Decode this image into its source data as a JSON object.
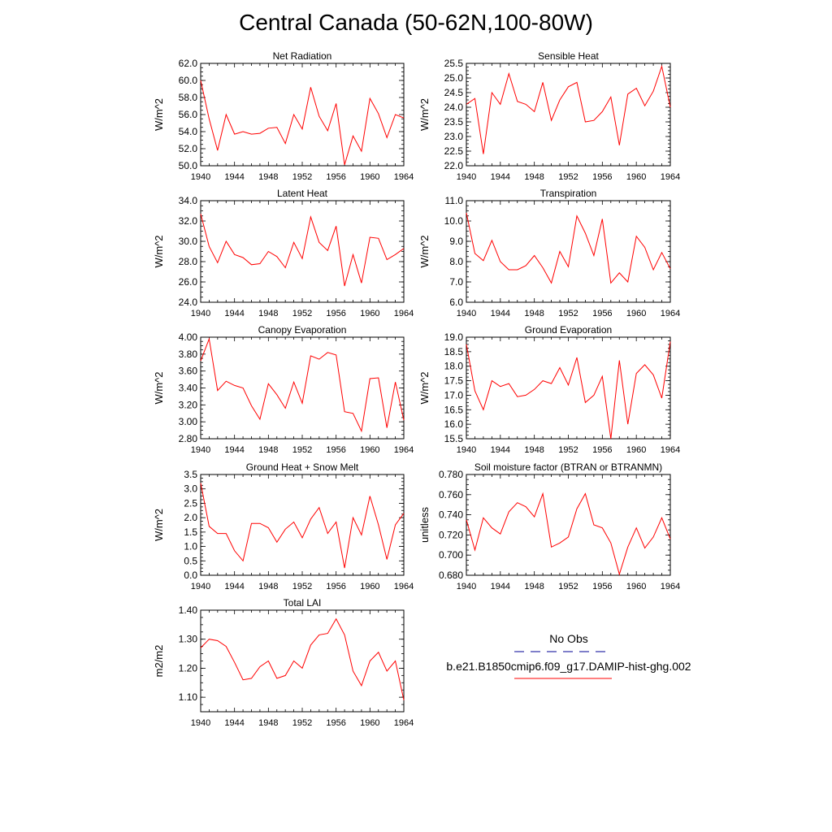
{
  "figure": {
    "title": "Central Canada (50-62N,100-80W)",
    "line_color": "#ff0000",
    "obs_color": "#3333aa"
  },
  "legend": {
    "obs_label": "No Obs",
    "model_label": "b.e21.B1850cmip6.f09_g17.DAMIP-hist-ghg.002"
  },
  "chart_data": [
    {
      "type": "line",
      "title": "Net Radiation",
      "ylabel": "W/m^2",
      "xlabel": "",
      "x": [
        1940,
        1941,
        1942,
        1943,
        1944,
        1945,
        1946,
        1947,
        1948,
        1949,
        1950,
        1951,
        1952,
        1953,
        1954,
        1955,
        1956,
        1957,
        1958,
        1959,
        1960,
        1961,
        1962,
        1963,
        1964
      ],
      "values": [
        60.0,
        55.5,
        51.8,
        56.0,
        53.7,
        54.0,
        53.7,
        53.8,
        54.4,
        54.5,
        52.6,
        56.0,
        54.3,
        59.2,
        55.8,
        54.1,
        57.3,
        50.1,
        53.5,
        51.7,
        57.9,
        56.1,
        53.3,
        56.0,
        55.6
      ],
      "ylim": [
        50.0,
        62.0
      ],
      "yticks": [
        "50.0",
        "52.0",
        "54.0",
        "56.0",
        "58.0",
        "60.0",
        "62.0"
      ],
      "xticks": [
        "1940",
        "1944",
        "1948",
        "1952",
        "1956",
        "1960",
        "1964"
      ]
    },
    {
      "type": "line",
      "title": "Sensible Heat",
      "ylabel": "W/m^2",
      "xlabel": "",
      "x": [
        1940,
        1941,
        1942,
        1943,
        1944,
        1945,
        1946,
        1947,
        1948,
        1949,
        1950,
        1951,
        1952,
        1953,
        1954,
        1955,
        1956,
        1957,
        1958,
        1959,
        1960,
        1961,
        1962,
        1963,
        1964
      ],
      "values": [
        24.1,
        24.3,
        22.4,
        24.5,
        24.1,
        25.15,
        24.2,
        24.1,
        23.85,
        24.85,
        23.55,
        24.25,
        24.7,
        24.85,
        23.5,
        23.55,
        23.85,
        24.35,
        22.7,
        24.45,
        24.65,
        24.05,
        24.55,
        25.4,
        24.0
      ],
      "ylim": [
        22.0,
        25.5
      ],
      "yticks": [
        "22.0",
        "22.5",
        "23.0",
        "23.5",
        "24.0",
        "24.5",
        "25.0",
        "25.5"
      ],
      "xticks": [
        "1940",
        "1944",
        "1948",
        "1952",
        "1956",
        "1960",
        "1964"
      ]
    },
    {
      "type": "line",
      "title": "Latent Heat",
      "ylabel": "W/m^2",
      "xlabel": "",
      "x": [
        1940,
        1941,
        1942,
        1943,
        1944,
        1945,
        1946,
        1947,
        1948,
        1949,
        1950,
        1951,
        1952,
        1953,
        1954,
        1955,
        1956,
        1957,
        1958,
        1959,
        1960,
        1961,
        1962,
        1963,
        1964
      ],
      "values": [
        32.7,
        29.5,
        27.9,
        30.0,
        28.7,
        28.4,
        27.7,
        27.8,
        29.0,
        28.5,
        27.4,
        29.9,
        28.3,
        32.4,
        29.9,
        29.1,
        31.5,
        25.6,
        28.7,
        25.9,
        30.4,
        30.3,
        28.2,
        28.7,
        29.3
      ],
      "ylim": [
        24.0,
        34.0
      ],
      "yticks": [
        "24.0",
        "26.0",
        "28.0",
        "30.0",
        "32.0",
        "34.0"
      ],
      "xticks": [
        "1940",
        "1944",
        "1948",
        "1952",
        "1956",
        "1960",
        "1964"
      ]
    },
    {
      "type": "line",
      "title": "Transpiration",
      "ylabel": "W/m^2",
      "xlabel": "",
      "x": [
        1940,
        1941,
        1942,
        1943,
        1944,
        1945,
        1946,
        1947,
        1948,
        1949,
        1950,
        1951,
        1952,
        1953,
        1954,
        1955,
        1956,
        1957,
        1958,
        1959,
        1960,
        1961,
        1962,
        1963,
        1964
      ],
      "values": [
        10.4,
        8.4,
        8.05,
        9.05,
        8.0,
        7.6,
        7.6,
        7.8,
        8.3,
        7.7,
        6.95,
        8.5,
        7.75,
        10.25,
        9.4,
        8.3,
        10.1,
        6.95,
        7.45,
        7.0,
        9.25,
        8.7,
        7.6,
        8.45,
        7.65
      ],
      "ylim": [
        6.0,
        11.0
      ],
      "yticks": [
        "6.0",
        "7.0",
        "8.0",
        "9.0",
        "10.0",
        "11.0"
      ],
      "xticks": [
        "1940",
        "1944",
        "1948",
        "1952",
        "1956",
        "1960",
        "1964"
      ]
    },
    {
      "type": "line",
      "title": "Canopy Evaporation",
      "ylabel": "W/m^2",
      "xlabel": "",
      "x": [
        1940,
        1941,
        1942,
        1943,
        1944,
        1945,
        1946,
        1947,
        1948,
        1949,
        1950,
        1951,
        1952,
        1953,
        1954,
        1955,
        1956,
        1957,
        1958,
        1959,
        1960,
        1961,
        1962,
        1963,
        1964
      ],
      "values": [
        3.72,
        3.98,
        3.37,
        3.48,
        3.43,
        3.4,
        3.19,
        3.03,
        3.45,
        3.32,
        3.16,
        3.47,
        3.22,
        3.78,
        3.74,
        3.82,
        3.79,
        3.12,
        3.1,
        2.89,
        3.51,
        3.52,
        2.93,
        3.47,
        3.02
      ],
      "ylim": [
        2.8,
        4.0
      ],
      "yticks": [
        "2.80",
        "3.00",
        "3.20",
        "3.40",
        "3.60",
        "3.80",
        "4.00"
      ],
      "xticks": [
        "1940",
        "1944",
        "1948",
        "1952",
        "1956",
        "1960",
        "1964"
      ]
    },
    {
      "type": "line",
      "title": "Ground Evaporation",
      "ylabel": "W/m^2",
      "xlabel": "",
      "x": [
        1940,
        1941,
        1942,
        1943,
        1944,
        1945,
        1946,
        1947,
        1948,
        1949,
        1950,
        1951,
        1952,
        1953,
        1954,
        1955,
        1956,
        1957,
        1958,
        1959,
        1960,
        1961,
        1962,
        1963,
        1964
      ],
      "values": [
        18.75,
        17.15,
        16.5,
        17.5,
        17.3,
        17.4,
        16.95,
        17.0,
        17.2,
        17.5,
        17.4,
        17.95,
        17.35,
        18.3,
        16.75,
        17.0,
        17.65,
        15.5,
        18.2,
        16.0,
        17.75,
        18.05,
        17.7,
        16.9,
        18.85
      ],
      "ylim": [
        15.5,
        19.0
      ],
      "yticks": [
        "15.5",
        "16.0",
        "16.5",
        "17.0",
        "17.5",
        "18.0",
        "18.5",
        "19.0"
      ],
      "xticks": [
        "1940",
        "1944",
        "1948",
        "1952",
        "1956",
        "1960",
        "1964"
      ]
    },
    {
      "type": "line",
      "title": "Ground Heat + Snow Melt",
      "ylabel": "W/m^2",
      "xlabel": "",
      "x": [
        1940,
        1941,
        1942,
        1943,
        1944,
        1945,
        1946,
        1947,
        1948,
        1949,
        1950,
        1951,
        1952,
        1953,
        1954,
        1955,
        1956,
        1957,
        1958,
        1959,
        1960,
        1961,
        1962,
        1963,
        1964
      ],
      "values": [
        3.2,
        1.7,
        1.45,
        1.45,
        0.85,
        0.5,
        1.8,
        1.8,
        1.65,
        1.15,
        1.6,
        1.85,
        1.3,
        1.95,
        2.35,
        1.45,
        1.85,
        0.25,
        2.0,
        1.4,
        2.75,
        1.75,
        0.55,
        1.75,
        2.15
      ],
      "ylim": [
        0.0,
        3.5
      ],
      "yticks": [
        "0.0",
        "0.5",
        "1.0",
        "1.5",
        "2.0",
        "2.5",
        "3.0",
        "3.5"
      ],
      "xticks": [
        "1940",
        "1944",
        "1948",
        "1952",
        "1956",
        "1960",
        "1964"
      ]
    },
    {
      "type": "line",
      "title": "Soil moisture factor (BTRAN or BTRANMN)",
      "ylabel": "unitless",
      "xlabel": "",
      "x": [
        1940,
        1941,
        1942,
        1943,
        1944,
        1945,
        1946,
        1947,
        1948,
        1949,
        1950,
        1951,
        1952,
        1953,
        1954,
        1955,
        1956,
        1957,
        1958,
        1959,
        1960,
        1961,
        1962,
        1963,
        1964
      ],
      "values": [
        0.735,
        0.705,
        0.737,
        0.727,
        0.721,
        0.743,
        0.752,
        0.748,
        0.738,
        0.761,
        0.708,
        0.712,
        0.718,
        0.746,
        0.761,
        0.73,
        0.727,
        0.712,
        0.681,
        0.708,
        0.727,
        0.707,
        0.718,
        0.737,
        0.716
      ],
      "ylim": [
        0.68,
        0.78
      ],
      "yticks": [
        "0.680",
        "0.700",
        "0.720",
        "0.740",
        "0.760",
        "0.780"
      ],
      "xticks": [
        "1940",
        "1944",
        "1948",
        "1952",
        "1956",
        "1960",
        "1964"
      ]
    },
    {
      "type": "line",
      "title": "Total LAI",
      "ylabel": "m2/m2",
      "xlabel": "",
      "x": [
        1940,
        1941,
        1942,
        1943,
        1944,
        1945,
        1946,
        1947,
        1948,
        1949,
        1950,
        1951,
        1952,
        1953,
        1954,
        1955,
        1956,
        1957,
        1958,
        1959,
        1960,
        1961,
        1962,
        1963,
        1964
      ],
      "values": [
        1.27,
        1.3,
        1.295,
        1.275,
        1.22,
        1.16,
        1.165,
        1.205,
        1.225,
        1.165,
        1.175,
        1.225,
        1.2,
        1.28,
        1.315,
        1.32,
        1.37,
        1.315,
        1.19,
        1.14,
        1.225,
        1.255,
        1.19,
        1.225,
        1.09
      ],
      "ylim": [
        1.05,
        1.4
      ],
      "yticks": [
        "1.10",
        "1.20",
        "1.30",
        "1.40"
      ],
      "yticks_values": [
        1.1,
        1.2,
        1.3,
        1.4
      ],
      "xticks": [
        "1940",
        "1944",
        "1948",
        "1952",
        "1956",
        "1960",
        "1964"
      ]
    }
  ]
}
